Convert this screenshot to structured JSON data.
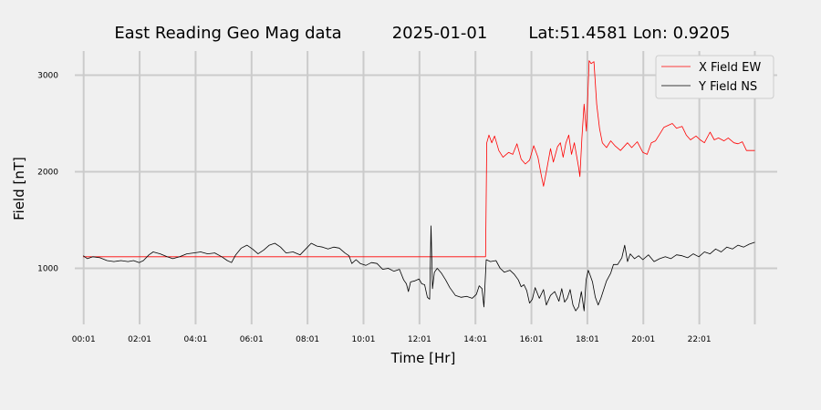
{
  "chart_data": {
    "type": "line",
    "title": {
      "text": "East Reading Geo Mag data",
      "date": "2025-01-01",
      "location": "Lat:51.4581  Lon: 0.9205"
    },
    "xlabel": "Time  [Hr]",
    "ylabel": "Field  [nT]",
    "x_unit": "hours",
    "xlim": [
      -0.3,
      24.8
    ],
    "ylim": [
      420,
      3250
    ],
    "x_ticks": [
      {
        "value": 0.0167,
        "label": "00:01"
      },
      {
        "value": 2.0167,
        "label": "02:01"
      },
      {
        "value": 4.0167,
        "label": "04:01"
      },
      {
        "value": 6.0167,
        "label": "06:01"
      },
      {
        "value": 8.0167,
        "label": "08:01"
      },
      {
        "value": 10.0167,
        "label": "10:01"
      },
      {
        "value": 12.0167,
        "label": "12:01"
      },
      {
        "value": 14.0167,
        "label": "14:01"
      },
      {
        "value": 16.0167,
        "label": "16:01"
      },
      {
        "value": 18.0167,
        "label": "18:01"
      },
      {
        "value": 20.0167,
        "label": "20:01"
      },
      {
        "value": 22.0167,
        "label": "22:01"
      }
    ],
    "x_grid_extra": [
      24.0
    ],
    "y_ticks": [
      1000,
      2000,
      3000
    ],
    "grid": true,
    "legend": "top-right",
    "series": [
      {
        "name": "X Field EW",
        "color": "#ff0000",
        "points": [
          [
            0.0,
            1120
          ],
          [
            14.38,
            1120
          ],
          [
            14.42,
            2300
          ],
          [
            14.5,
            2380
          ],
          [
            14.6,
            2300
          ],
          [
            14.7,
            2370
          ],
          [
            14.85,
            2220
          ],
          [
            15.0,
            2150
          ],
          [
            15.2,
            2200
          ],
          [
            15.35,
            2180
          ],
          [
            15.5,
            2290
          ],
          [
            15.65,
            2130
          ],
          [
            15.8,
            2080
          ],
          [
            15.95,
            2120
          ],
          [
            16.1,
            2270
          ],
          [
            16.25,
            2150
          ],
          [
            16.35,
            1990
          ],
          [
            16.45,
            1850
          ],
          [
            16.55,
            2000
          ],
          [
            16.7,
            2240
          ],
          [
            16.8,
            2100
          ],
          [
            16.95,
            2260
          ],
          [
            17.05,
            2300
          ],
          [
            17.15,
            2150
          ],
          [
            17.25,
            2300
          ],
          [
            17.35,
            2380
          ],
          [
            17.45,
            2180
          ],
          [
            17.55,
            2300
          ],
          [
            17.7,
            2050
          ],
          [
            17.75,
            1950
          ],
          [
            17.82,
            2350
          ],
          [
            17.9,
            2700
          ],
          [
            17.98,
            2420
          ],
          [
            18.02,
            2700
          ],
          [
            18.08,
            3150
          ],
          [
            18.15,
            3120
          ],
          [
            18.25,
            3140
          ],
          [
            18.35,
            2700
          ],
          [
            18.45,
            2450
          ],
          [
            18.55,
            2300
          ],
          [
            18.7,
            2250
          ],
          [
            18.85,
            2320
          ],
          [
            19.0,
            2270
          ],
          [
            19.2,
            2220
          ],
          [
            19.45,
            2300
          ],
          [
            19.6,
            2250
          ],
          [
            19.8,
            2310
          ],
          [
            20.0,
            2200
          ],
          [
            20.15,
            2180
          ],
          [
            20.3,
            2300
          ],
          [
            20.45,
            2320
          ],
          [
            20.6,
            2390
          ],
          [
            20.75,
            2460
          ],
          [
            20.9,
            2480
          ],
          [
            21.05,
            2500
          ],
          [
            21.2,
            2450
          ],
          [
            21.4,
            2470
          ],
          [
            21.55,
            2380
          ],
          [
            21.7,
            2330
          ],
          [
            21.9,
            2370
          ],
          [
            22.05,
            2330
          ],
          [
            22.2,
            2300
          ],
          [
            22.4,
            2410
          ],
          [
            22.55,
            2330
          ],
          [
            22.7,
            2350
          ],
          [
            22.9,
            2320
          ],
          [
            23.05,
            2350
          ],
          [
            23.25,
            2300
          ],
          [
            23.4,
            2290
          ],
          [
            23.55,
            2310
          ],
          [
            23.7,
            2220
          ],
          [
            24.0,
            2220
          ]
        ]
      },
      {
        "name": "Y Field NS",
        "color": "#000000",
        "points": [
          [
            0.0,
            1130
          ],
          [
            0.15,
            1100
          ],
          [
            0.35,
            1120
          ],
          [
            0.6,
            1110
          ],
          [
            0.85,
            1080
          ],
          [
            1.1,
            1070
          ],
          [
            1.35,
            1080
          ],
          [
            1.6,
            1070
          ],
          [
            1.8,
            1080
          ],
          [
            2.0,
            1060
          ],
          [
            2.15,
            1080
          ],
          [
            2.35,
            1140
          ],
          [
            2.5,
            1170
          ],
          [
            2.75,
            1150
          ],
          [
            3.0,
            1120
          ],
          [
            3.2,
            1100
          ],
          [
            3.45,
            1120
          ],
          [
            3.7,
            1150
          ],
          [
            3.95,
            1160
          ],
          [
            4.2,
            1170
          ],
          [
            4.45,
            1150
          ],
          [
            4.7,
            1160
          ],
          [
            4.95,
            1120
          ],
          [
            5.15,
            1080
          ],
          [
            5.3,
            1060
          ],
          [
            5.45,
            1140
          ],
          [
            5.65,
            1210
          ],
          [
            5.85,
            1240
          ],
          [
            6.05,
            1200
          ],
          [
            6.25,
            1150
          ],
          [
            6.45,
            1190
          ],
          [
            6.65,
            1240
          ],
          [
            6.85,
            1260
          ],
          [
            7.05,
            1220
          ],
          [
            7.25,
            1160
          ],
          [
            7.5,
            1170
          ],
          [
            7.75,
            1140
          ],
          [
            7.95,
            1200
          ],
          [
            8.15,
            1260
          ],
          [
            8.35,
            1230
          ],
          [
            8.55,
            1220
          ],
          [
            8.75,
            1200
          ],
          [
            8.95,
            1220
          ],
          [
            9.15,
            1210
          ],
          [
            9.35,
            1160
          ],
          [
            9.5,
            1130
          ],
          [
            9.6,
            1050
          ],
          [
            9.75,
            1090
          ],
          [
            9.9,
            1050
          ],
          [
            10.1,
            1030
          ],
          [
            10.3,
            1060
          ],
          [
            10.5,
            1050
          ],
          [
            10.7,
            990
          ],
          [
            10.9,
            1000
          ],
          [
            11.1,
            970
          ],
          [
            11.3,
            990
          ],
          [
            11.45,
            880
          ],
          [
            11.55,
            840
          ],
          [
            11.62,
            760
          ],
          [
            11.7,
            860
          ],
          [
            11.85,
            870
          ],
          [
            12.0,
            890
          ],
          [
            12.1,
            840
          ],
          [
            12.2,
            830
          ],
          [
            12.3,
            700
          ],
          [
            12.38,
            680
          ],
          [
            12.43,
            1440
          ],
          [
            12.48,
            790
          ],
          [
            12.55,
            960
          ],
          [
            12.65,
            1000
          ],
          [
            12.8,
            950
          ],
          [
            12.95,
            880
          ],
          [
            13.1,
            800
          ],
          [
            13.3,
            720
          ],
          [
            13.5,
            700
          ],
          [
            13.7,
            710
          ],
          [
            13.9,
            690
          ],
          [
            14.05,
            730
          ],
          [
            14.15,
            820
          ],
          [
            14.25,
            790
          ],
          [
            14.32,
            600
          ],
          [
            14.4,
            1090
          ],
          [
            14.55,
            1070
          ],
          [
            14.75,
            1080
          ],
          [
            14.9,
            1000
          ],
          [
            15.05,
            960
          ],
          [
            15.25,
            980
          ],
          [
            15.4,
            940
          ],
          [
            15.55,
            880
          ],
          [
            15.65,
            810
          ],
          [
            15.75,
            830
          ],
          [
            15.85,
            770
          ],
          [
            15.95,
            640
          ],
          [
            16.05,
            680
          ],
          [
            16.15,
            800
          ],
          [
            16.3,
            690
          ],
          [
            16.45,
            780
          ],
          [
            16.55,
            620
          ],
          [
            16.7,
            720
          ],
          [
            16.85,
            760
          ],
          [
            17.0,
            660
          ],
          [
            17.1,
            790
          ],
          [
            17.2,
            650
          ],
          [
            17.3,
            690
          ],
          [
            17.4,
            780
          ],
          [
            17.5,
            620
          ],
          [
            17.6,
            560
          ],
          [
            17.7,
            600
          ],
          [
            17.8,
            760
          ],
          [
            17.9,
            560
          ],
          [
            17.97,
            880
          ],
          [
            18.05,
            980
          ],
          [
            18.1,
            940
          ],
          [
            18.2,
            860
          ],
          [
            18.3,
            700
          ],
          [
            18.4,
            620
          ],
          [
            18.5,
            690
          ],
          [
            18.6,
            780
          ],
          [
            18.7,
            870
          ],
          [
            18.85,
            950
          ],
          [
            18.95,
            1040
          ],
          [
            19.1,
            1040
          ],
          [
            19.25,
            1110
          ],
          [
            19.35,
            1240
          ],
          [
            19.45,
            1070
          ],
          [
            19.55,
            1150
          ],
          [
            19.7,
            1100
          ],
          [
            19.85,
            1130
          ],
          [
            20.0,
            1090
          ],
          [
            20.2,
            1140
          ],
          [
            20.4,
            1070
          ],
          [
            20.6,
            1100
          ],
          [
            20.8,
            1120
          ],
          [
            21.0,
            1100
          ],
          [
            21.2,
            1140
          ],
          [
            21.4,
            1130
          ],
          [
            21.6,
            1110
          ],
          [
            21.8,
            1150
          ],
          [
            22.0,
            1120
          ],
          [
            22.2,
            1170
          ],
          [
            22.4,
            1150
          ],
          [
            22.6,
            1200
          ],
          [
            22.8,
            1170
          ],
          [
            23.0,
            1220
          ],
          [
            23.2,
            1200
          ],
          [
            23.4,
            1240
          ],
          [
            23.6,
            1220
          ],
          [
            23.8,
            1250
          ],
          [
            24.0,
            1270
          ]
        ]
      }
    ]
  }
}
